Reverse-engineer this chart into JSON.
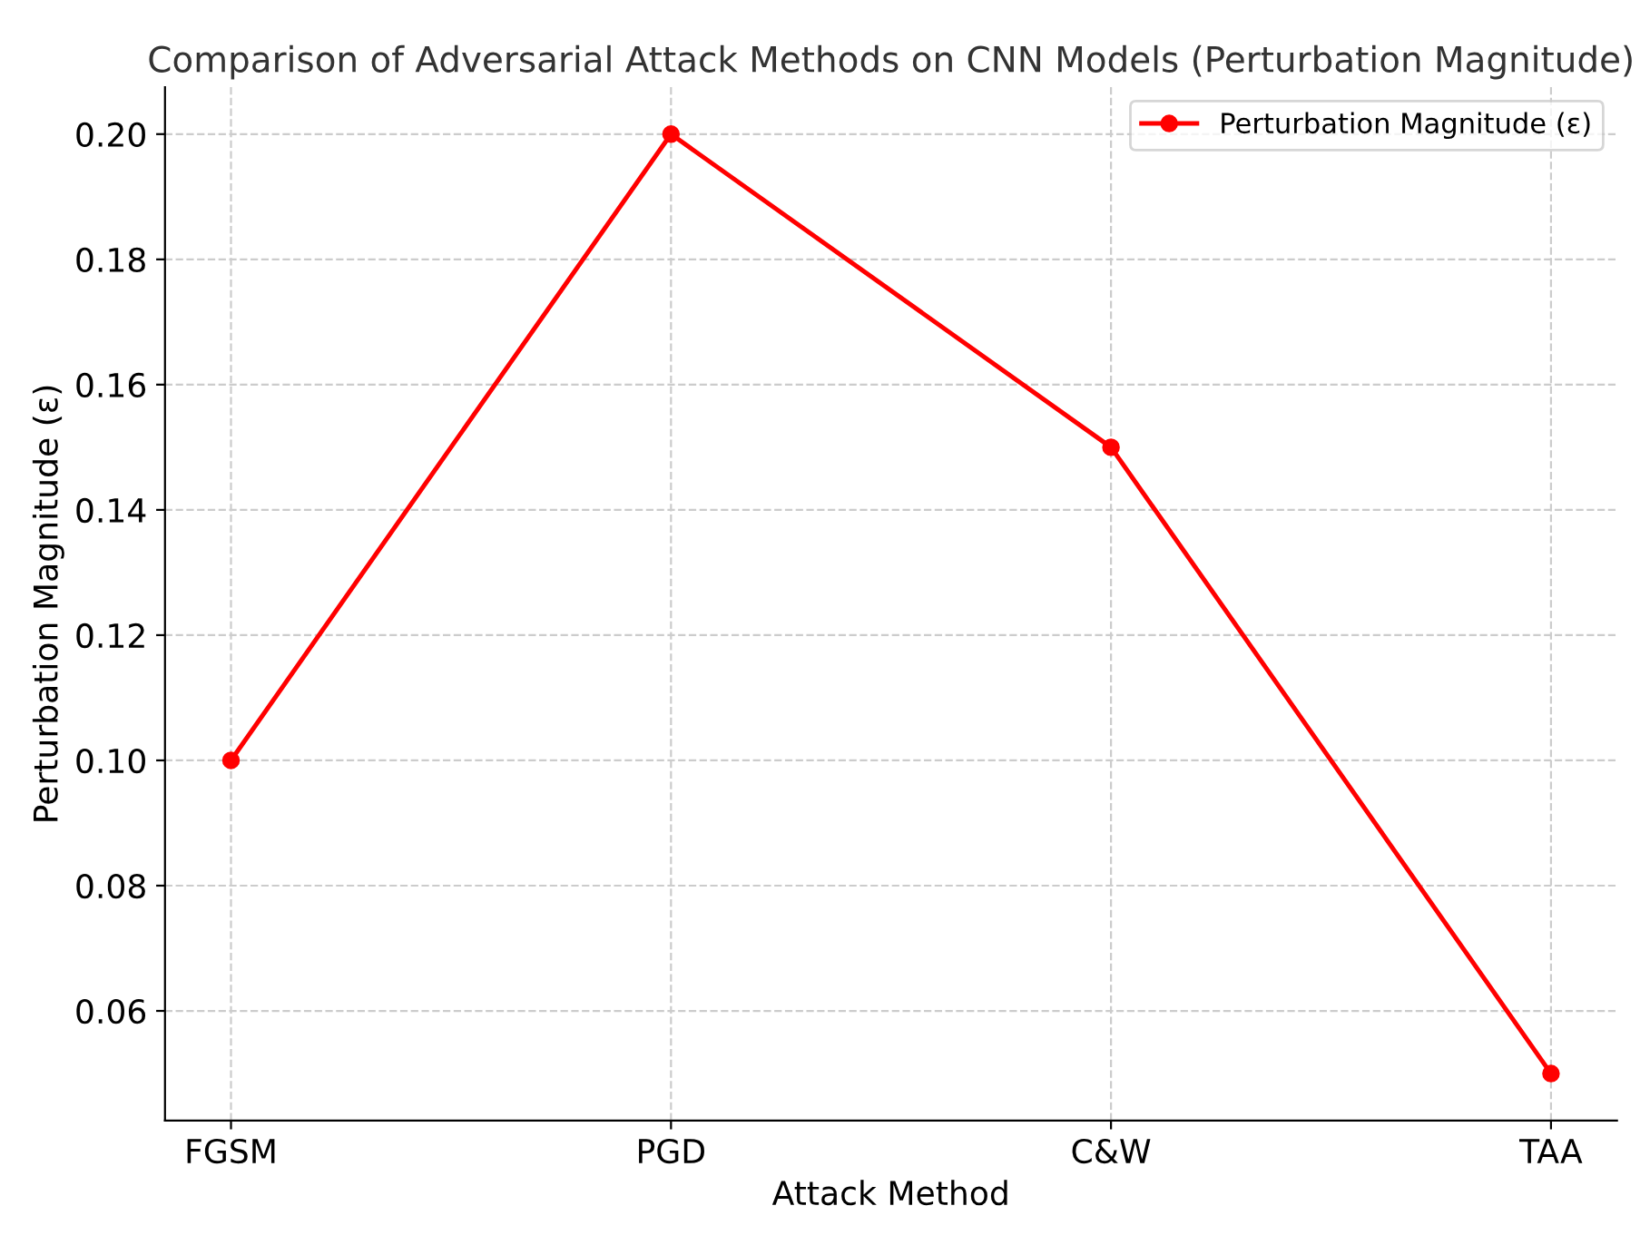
{
  "chart_data": {
    "type": "line",
    "title": "Comparison of Adversarial Attack Methods on CNN Models (Perturbation Magnitude)",
    "xlabel": "Attack Method",
    "ylabel": "Perturbation Magnitude (ε)",
    "categories": [
      "FGSM",
      "PGD",
      "C&W",
      "TAA"
    ],
    "series": [
      {
        "name": "Perturbation Magnitude (ε)",
        "color": "#ff0000",
        "values": [
          0.1,
          0.2,
          0.15,
          0.05
        ]
      }
    ],
    "ylim": [
      0.0425,
      0.2075
    ],
    "yticks": [
      0.06,
      0.08,
      {
        "value": 0.1,
        "label": "0.10"
      },
      0.12,
      0.14,
      0.16,
      0.18,
      {
        "value": 0.2,
        "label": "0.20"
      }
    ],
    "grid": true,
    "legend": "top right",
    "marker": "circle",
    "line_style": "solid"
  }
}
